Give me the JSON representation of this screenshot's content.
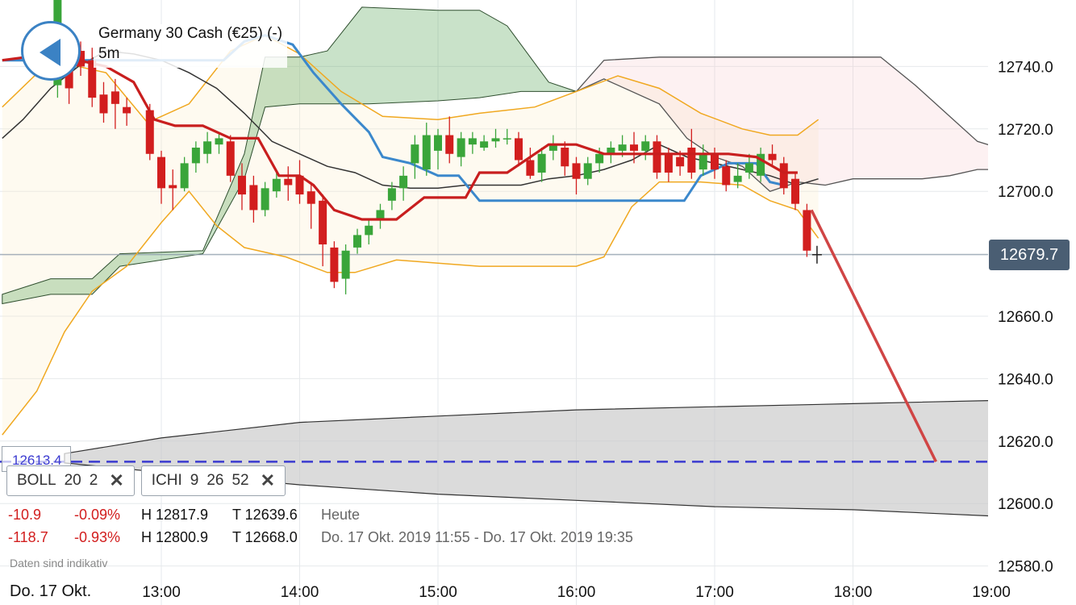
{
  "instrument": {
    "title": "Germany 30 Cash (€25) (-)",
    "interval": "5m"
  },
  "current_price_label": "12679.7",
  "level_label": "12613.4",
  "chips": [
    {
      "name": "BOLL",
      "params": [
        "20",
        "2"
      ]
    },
    {
      "name": "ICHI",
      "params": [
        "9",
        "26",
        "52"
      ]
    }
  ],
  "stats": [
    {
      "change": "-10.9",
      "pct": "-0.09%",
      "high": "H 12817.9",
      "low": "T 12639.6",
      "period": "Heute"
    },
    {
      "change": "-118.7",
      "pct": "-0.93%",
      "high": "H 12800.9",
      "low": "T 12668.0",
      "period": "Do. 17 Okt. 2019 11:55 - Do. 17 Okt. 2019 19:35"
    }
  ],
  "disclaimer": "Daten sind indikativ",
  "date_label": "Do. 17 Okt.",
  "colors": {
    "up": "#3aa53a",
    "down": "#d21e1e",
    "boll": "#f0a820",
    "kijun": "#3b88cc",
    "tenkan": "#c81e1e",
    "lagging": "#333333",
    "level": "#3a3ad0",
    "projection": "#d04545"
  },
  "chart_data": {
    "type": "candlestick",
    "yticks": [
      "12580.0",
      "12600.0",
      "12620.0",
      "12640.0",
      "12660.0",
      "12680.0",
      "12700.0",
      "12720.0",
      "12740.0"
    ],
    "y_range": [
      12576,
      12758
    ],
    "xticks": [
      "13:00",
      "14:00",
      "15:00",
      "16:00",
      "17:00",
      "18:00",
      "19:00"
    ],
    "x_range_hours": [
      11.85,
      19.4
    ],
    "candle_minutes": 5,
    "current_price": 12679.7,
    "level": 12613.4,
    "candles": [
      {
        "t": 12.25,
        "o": 12734,
        "c": 12762,
        "h": 12766,
        "l": 12730
      },
      {
        "t": 12.333,
        "o": 12742,
        "c": 12733,
        "h": 12746,
        "l": 12728
      },
      {
        "t": 12.417,
        "o": 12745,
        "c": 12740,
        "h": 12748,
        "l": 12737
      },
      {
        "t": 12.5,
        "o": 12742,
        "c": 12730,
        "h": 12746,
        "l": 12727
      },
      {
        "t": 12.583,
        "o": 12731,
        "c": 12725,
        "h": 12735,
        "l": 12722
      },
      {
        "t": 12.667,
        "o": 12732,
        "c": 12728,
        "h": 12736,
        "l": 12720
      },
      {
        "t": 12.75,
        "o": 12727,
        "c": 12725,
        "h": 12730,
        "l": 12721
      },
      {
        "t": 12.917,
        "o": 12726,
        "c": 12712,
        "h": 12728,
        "l": 12710
      },
      {
        "t": 13.0,
        "o": 12711,
        "c": 12701,
        "h": 12713,
        "l": 12696
      },
      {
        "t": 13.083,
        "o": 12702,
        "c": 12701,
        "h": 12707,
        "l": 12694
      },
      {
        "t": 13.167,
        "o": 12701,
        "c": 12709,
        "h": 12711,
        "l": 12700
      },
      {
        "t": 13.25,
        "o": 12709,
        "c": 12714,
        "h": 12716,
        "l": 12706
      },
      {
        "t": 13.333,
        "o": 12712,
        "c": 12716,
        "h": 12719,
        "l": 12709
      },
      {
        "t": 13.417,
        "o": 12715,
        "c": 12717,
        "h": 12719,
        "l": 12712
      },
      {
        "t": 13.5,
        "o": 12716,
        "c": 12705,
        "h": 12718,
        "l": 12703
      },
      {
        "t": 13.583,
        "o": 12705,
        "c": 12699,
        "h": 12709,
        "l": 12694
      },
      {
        "t": 13.667,
        "o": 12702,
        "c": 12694,
        "h": 12705,
        "l": 12690
      },
      {
        "t": 13.75,
        "o": 12694,
        "c": 12701,
        "h": 12703,
        "l": 12692
      },
      {
        "t": 13.833,
        "o": 12700,
        "c": 12704,
        "h": 12706,
        "l": 12698
      },
      {
        "t": 13.917,
        "o": 12704,
        "c": 12702,
        "h": 12708,
        "l": 12697
      },
      {
        "t": 14.0,
        "o": 12705,
        "c": 12699,
        "h": 12710,
        "l": 12696
      },
      {
        "t": 14.083,
        "o": 12700,
        "c": 12696,
        "h": 12703,
        "l": 12688
      },
      {
        "t": 14.167,
        "o": 12697,
        "c": 12683,
        "h": 12699,
        "l": 12676
      },
      {
        "t": 14.25,
        "o": 12682,
        "c": 12671,
        "h": 12684,
        "l": 12669
      },
      {
        "t": 14.333,
        "o": 12672,
        "c": 12681,
        "h": 12683,
        "l": 12667
      },
      {
        "t": 14.417,
        "o": 12682,
        "c": 12686,
        "h": 12688,
        "l": 12680
      },
      {
        "t": 14.5,
        "o": 12686,
        "c": 12689,
        "h": 12691,
        "l": 12683
      },
      {
        "t": 14.583,
        "o": 12691,
        "c": 12694,
        "h": 12696,
        "l": 12688
      },
      {
        "t": 14.667,
        "o": 12697,
        "c": 12701,
        "h": 12703,
        "l": 12694
      },
      {
        "t": 14.75,
        "o": 12701,
        "c": 12705,
        "h": 12708,
        "l": 12697
      },
      {
        "t": 14.833,
        "o": 12709,
        "c": 12715,
        "h": 12718,
        "l": 12704
      },
      {
        "t": 14.917,
        "o": 12707,
        "c": 12718,
        "h": 12722,
        "l": 12705
      },
      {
        "t": 15.0,
        "o": 12713,
        "c": 12718,
        "h": 12720,
        "l": 12707
      },
      {
        "t": 15.083,
        "o": 12718,
        "c": 12712,
        "h": 12724,
        "l": 12709
      },
      {
        "t": 15.167,
        "o": 12711,
        "c": 12717,
        "h": 12719,
        "l": 12708
      },
      {
        "t": 15.25,
        "o": 12715,
        "c": 12717,
        "h": 12719,
        "l": 12712
      },
      {
        "t": 15.333,
        "o": 12714,
        "c": 12716,
        "h": 12718,
        "l": 12713
      },
      {
        "t": 15.417,
        "o": 12716,
        "c": 12717,
        "h": 12720,
        "l": 12714
      },
      {
        "t": 15.5,
        "o": 12717,
        "c": 12717,
        "h": 12720,
        "l": 12715
      },
      {
        "t": 15.583,
        "o": 12717,
        "c": 12710,
        "h": 12719,
        "l": 12708
      },
      {
        "t": 15.667,
        "o": 12710,
        "c": 12705,
        "h": 12714,
        "l": 12704
      },
      {
        "t": 15.75,
        "o": 12706,
        "c": 12712,
        "h": 12714,
        "l": 12703
      },
      {
        "t": 15.833,
        "o": 12713,
        "c": 12715,
        "h": 12718,
        "l": 12710
      },
      {
        "t": 15.917,
        "o": 12714,
        "c": 12708,
        "h": 12716,
        "l": 12705
      },
      {
        "t": 16.0,
        "o": 12709,
        "c": 12704,
        "h": 12711,
        "l": 12699
      },
      {
        "t": 16.083,
        "o": 12704,
        "c": 12709,
        "h": 12711,
        "l": 12702
      },
      {
        "t": 16.167,
        "o": 12709,
        "c": 12712,
        "h": 12714,
        "l": 12706
      },
      {
        "t": 16.25,
        "o": 12712,
        "c": 12714,
        "h": 12716,
        "l": 12709
      },
      {
        "t": 16.333,
        "o": 12713,
        "c": 12715,
        "h": 12718,
        "l": 12711
      },
      {
        "t": 16.417,
        "o": 12715,
        "c": 12713,
        "h": 12719,
        "l": 12709
      },
      {
        "t": 16.5,
        "o": 12713,
        "c": 12716,
        "h": 12718,
        "l": 12710
      },
      {
        "t": 16.583,
        "o": 12716,
        "c": 12706,
        "h": 12718,
        "l": 12704
      },
      {
        "t": 16.667,
        "o": 12712,
        "c": 12706,
        "h": 12714,
        "l": 12703
      },
      {
        "t": 16.75,
        "o": 12711,
        "c": 12708,
        "h": 12713,
        "l": 12705
      },
      {
        "t": 16.833,
        "o": 12714,
        "c": 12706,
        "h": 12720,
        "l": 12704
      },
      {
        "t": 16.917,
        "o": 12707,
        "c": 12712,
        "h": 12715,
        "l": 12705
      },
      {
        "t": 17.0,
        "o": 12712,
        "c": 12707,
        "h": 12714,
        "l": 12704
      },
      {
        "t": 17.083,
        "o": 12708,
        "c": 12702,
        "h": 12710,
        "l": 12700
      },
      {
        "t": 17.167,
        "o": 12703,
        "c": 12705,
        "h": 12709,
        "l": 12701
      },
      {
        "t": 17.25,
        "o": 12706,
        "c": 12709,
        "h": 12712,
        "l": 12704
      },
      {
        "t": 17.333,
        "o": 12705,
        "c": 12712,
        "h": 12714,
        "l": 12703
      },
      {
        "t": 17.417,
        "o": 12712,
        "c": 12710,
        "h": 12715,
        "l": 12708
      },
      {
        "t": 17.5,
        "o": 12709,
        "c": 12701,
        "h": 12711,
        "l": 12699
      },
      {
        "t": 17.583,
        "o": 12704,
        "c": 12696,
        "h": 12706,
        "l": 12694
      },
      {
        "t": 17.667,
        "o": 12694,
        "c": 12681,
        "h": 12696,
        "l": 12679
      }
    ],
    "boll_upper": [
      [
        11.85,
        12727
      ],
      [
        12.2,
        12742
      ],
      [
        12.6,
        12738
      ],
      [
        12.9,
        12722
      ],
      [
        13.2,
        12728
      ],
      [
        13.5,
        12745
      ],
      [
        13.75,
        12750
      ],
      [
        14.0,
        12744
      ],
      [
        14.3,
        12732
      ],
      [
        14.6,
        12724
      ],
      [
        15.0,
        12723
      ],
      [
        15.3,
        12725
      ],
      [
        15.7,
        12727
      ],
      [
        16.0,
        12732
      ],
      [
        16.3,
        12737
      ],
      [
        16.6,
        12733
      ],
      [
        16.9,
        12725
      ],
      [
        17.2,
        12720
      ],
      [
        17.4,
        12718
      ],
      [
        17.6,
        12718
      ],
      [
        17.75,
        12723
      ]
    ],
    "boll_mid": [
      [
        11.85,
        12740
      ],
      [
        12.2,
        12745
      ],
      [
        12.6,
        12740
      ],
      [
        12.9,
        12733
      ],
      [
        13.2,
        12730
      ],
      [
        13.5,
        12729
      ],
      [
        13.75,
        12730
      ],
      [
        14.0,
        12732
      ],
      [
        14.3,
        12728
      ],
      [
        14.6,
        12717
      ],
      [
        15.0,
        12712
      ],
      [
        15.3,
        12711
      ],
      [
        15.7,
        12712
      ],
      [
        16.0,
        12714
      ],
      [
        16.3,
        12716
      ],
      [
        16.6,
        12714
      ],
      [
        16.9,
        12713
      ],
      [
        17.2,
        12712
      ],
      [
        17.5,
        12710
      ],
      [
        17.75,
        12706
      ]
    ],
    "boll_lower": [
      [
        11.85,
        12622
      ],
      [
        12.1,
        12636
      ],
      [
        12.3,
        12655
      ],
      [
        12.5,
        12668
      ],
      [
        12.75,
        12676
      ],
      [
        13.0,
        12690
      ],
      [
        13.2,
        12700
      ],
      [
        13.4,
        12689
      ],
      [
        13.6,
        12682
      ],
      [
        13.9,
        12679
      ],
      [
        14.2,
        12674
      ],
      [
        14.4,
        12674
      ],
      [
        14.7,
        12678
      ],
      [
        15.0,
        12677
      ],
      [
        15.3,
        12676
      ],
      [
        15.6,
        12676
      ],
      [
        16.0,
        12676
      ],
      [
        16.2,
        12679
      ],
      [
        16.4,
        12695
      ],
      [
        16.6,
        12703
      ],
      [
        16.9,
        12703
      ],
      [
        17.2,
        12702
      ],
      [
        17.4,
        12697
      ],
      [
        17.6,
        12694
      ],
      [
        17.75,
        12685
      ]
    ],
    "tenkan": [
      [
        11.85,
        12742
      ],
      [
        12.2,
        12744
      ],
      [
        12.6,
        12740
      ],
      [
        12.8,
        12735
      ],
      [
        12.95,
        12723
      ],
      [
        13.1,
        12721
      ],
      [
        13.3,
        12721
      ],
      [
        13.5,
        12717
      ],
      [
        13.7,
        12717
      ],
      [
        13.85,
        12705
      ],
      [
        14.0,
        12705
      ],
      [
        14.1,
        12702
      ],
      [
        14.25,
        12694
      ],
      [
        14.45,
        12691
      ],
      [
        14.7,
        12691
      ],
      [
        14.9,
        12698
      ],
      [
        15.1,
        12698
      ],
      [
        15.2,
        12698
      ],
      [
        15.3,
        12706
      ],
      [
        15.5,
        12706
      ],
      [
        15.8,
        12715
      ],
      [
        16.0,
        12715
      ],
      [
        16.2,
        12712
      ],
      [
        16.4,
        12712
      ],
      [
        16.6,
        12712
      ],
      [
        16.9,
        12712
      ],
      [
        17.1,
        12712
      ],
      [
        17.3,
        12711
      ],
      [
        17.5,
        12706
      ],
      [
        17.6,
        12706
      ]
    ],
    "kijun": [
      [
        11.85,
        12742
      ],
      [
        12.2,
        12742
      ],
      [
        12.6,
        12742
      ],
      [
        13.2,
        12742
      ],
      [
        13.45,
        12742
      ],
      [
        13.6,
        12748
      ],
      [
        13.75,
        12750
      ],
      [
        13.95,
        12747
      ],
      [
        14.1,
        12738
      ],
      [
        14.3,
        12728
      ],
      [
        14.5,
        12719
      ],
      [
        14.6,
        12711
      ],
      [
        14.8,
        12709
      ],
      [
        15.0,
        12705
      ],
      [
        15.15,
        12705
      ],
      [
        15.3,
        12697
      ],
      [
        15.6,
        12697
      ],
      [
        15.9,
        12697
      ],
      [
        16.2,
        12697
      ],
      [
        16.5,
        12697
      ],
      [
        16.78,
        12697
      ],
      [
        16.9,
        12705
      ],
      [
        17.1,
        12709
      ],
      [
        17.3,
        12709
      ],
      [
        17.4,
        12703
      ],
      [
        17.5,
        12702
      ]
    ],
    "lagging": [
      [
        11.85,
        12717
      ],
      [
        12.0,
        12723
      ],
      [
        12.2,
        12733
      ],
      [
        12.4,
        12740
      ],
      [
        12.6,
        12745
      ],
      [
        12.8,
        12744
      ],
      [
        13.0,
        12742
      ],
      [
        13.2,
        12738
      ],
      [
        13.4,
        12733
      ],
      [
        13.6,
        12725
      ],
      [
        13.8,
        12716
      ],
      [
        14.0,
        12712
      ],
      [
        14.2,
        12708
      ],
      [
        14.4,
        12706
      ],
      [
        14.6,
        12702
      ],
      [
        14.8,
        12701
      ],
      [
        15.0,
        12701
      ],
      [
        15.2,
        12702
      ],
      [
        15.4,
        12702
      ],
      [
        15.6,
        12702
      ],
      [
        15.8,
        12704
      ],
      [
        16.0,
        12705
      ],
      [
        16.2,
        12707
      ],
      [
        16.4,
        12710
      ],
      [
        16.6,
        12715
      ],
      [
        16.8,
        12711
      ],
      [
        17.0,
        12709
      ],
      [
        17.2,
        12707
      ],
      [
        17.4,
        12705
      ],
      [
        17.6,
        12702
      ],
      [
        17.75,
        12704
      ]
    ],
    "cloud_green_upper": [
      [
        11.85,
        12667
      ],
      [
        12.2,
        12672
      ],
      [
        12.5,
        12672
      ],
      [
        12.7,
        12680
      ],
      [
        13.3,
        12681
      ],
      [
        13.6,
        12712
      ],
      [
        13.75,
        12743
      ],
      [
        14.0,
        12743
      ],
      [
        14.2,
        12745
      ],
      [
        14.45,
        12759
      ],
      [
        15.0,
        12758
      ],
      [
        15.3,
        12758
      ],
      [
        15.5,
        12753
      ],
      [
        15.8,
        12735
      ],
      [
        16.0,
        12732
      ]
    ],
    "cloud_green_lower": [
      [
        11.85,
        12664
      ],
      [
        12.2,
        12667
      ],
      [
        12.5,
        12667
      ],
      [
        12.7,
        12676
      ],
      [
        13.3,
        12680
      ],
      [
        13.6,
        12704
      ],
      [
        13.75,
        12727
      ],
      [
        14.0,
        12728
      ],
      [
        14.5,
        12728
      ],
      [
        15.0,
        12729
      ],
      [
        15.3,
        12730
      ],
      [
        15.6,
        12732
      ],
      [
        16.0,
        12732
      ]
    ],
    "cloud_red_upper": [
      [
        16.0,
        12732
      ],
      [
        16.2,
        12742
      ],
      [
        16.6,
        12743
      ],
      [
        17.0,
        12743
      ],
      [
        17.5,
        12743
      ],
      [
        18.0,
        12743
      ],
      [
        18.2,
        12743
      ],
      [
        18.45,
        12734
      ],
      [
        18.65,
        12726
      ],
      [
        18.9,
        12716
      ],
      [
        19.2,
        12712
      ],
      [
        19.4,
        12708
      ]
    ],
    "cloud_red_lower": [
      [
        16.0,
        12732
      ],
      [
        16.2,
        12736
      ],
      [
        16.6,
        12728
      ],
      [
        16.8,
        12717
      ],
      [
        17.0,
        12711
      ],
      [
        17.2,
        12708
      ],
      [
        17.4,
        12700
      ],
      [
        17.6,
        12703
      ],
      [
        17.8,
        12702
      ],
      [
        18.0,
        12704
      ],
      [
        18.2,
        12704
      ],
      [
        18.5,
        12704
      ],
      [
        18.7,
        12705
      ],
      [
        18.9,
        12707
      ],
      [
        19.1,
        12707
      ],
      [
        19.2,
        12701
      ],
      [
        19.4,
        12701
      ]
    ],
    "channel_upper": [
      [
        12.3,
        12616
      ],
      [
        13.0,
        12621
      ],
      [
        14.0,
        12626
      ],
      [
        15.0,
        12628
      ],
      [
        16.0,
        12630
      ],
      [
        17.0,
        12631
      ],
      [
        18.0,
        12632
      ],
      [
        19.0,
        12633
      ],
      [
        19.4,
        12633
      ]
    ],
    "channel_lower": [
      [
        12.3,
        12613
      ],
      [
        13.0,
        12610
      ],
      [
        14.0,
        12606
      ],
      [
        15.0,
        12603
      ],
      [
        16.0,
        12601
      ],
      [
        17.0,
        12599
      ],
      [
        18.0,
        12598
      ],
      [
        19.0,
        12596
      ],
      [
        19.4,
        12596
      ]
    ],
    "projection": [
      [
        17.7,
        12694
      ],
      [
        18.6,
        12613.4
      ]
    ]
  }
}
